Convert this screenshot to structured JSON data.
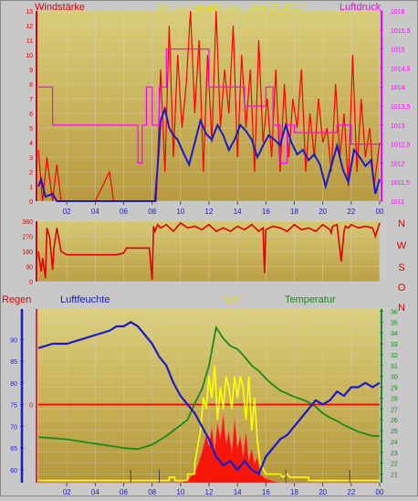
{
  "colors": {
    "background": "#c8c8c8",
    "plot_bg_top": "#d9cd79",
    "plot_bg_bottom": "#b89a40",
    "wind": "#1a1acc",
    "gust": "#ff0000",
    "pressure": "#ff00ff",
    "direction": "#e00000",
    "humidity": "#1a1acc",
    "temperature": "#1a8a1a",
    "uv": "#ffff00",
    "rain": "#ff0000",
    "grid": "#d4d4c4",
    "axis_red": "#e00000",
    "axis_blue": "#1a1acc",
    "axis_green": "#1a8a1a",
    "axis_magenta": "#ff00ff"
  },
  "chart_data": [
    {
      "type": "line",
      "title": "24 hour graph day : Juni 25 2017",
      "left_label": "Windstärke",
      "right_label": "Luftdruck",
      "x_ticks": [
        "02",
        "04",
        "06",
        "08",
        "10",
        "12",
        "14",
        "16",
        "18",
        "20",
        "22",
        "00"
      ],
      "xlim": [
        0,
        24
      ],
      "y_left": {
        "ylim": [
          0,
          13
        ],
        "ticks": [
          "0",
          "1",
          "2",
          "3",
          "4",
          "5",
          "6",
          "7",
          "8",
          "9",
          "10",
          "11",
          "12",
          "13"
        ]
      },
      "y_right": {
        "ylim": [
          1011,
          1016
        ],
        "ticks": [
          "1011",
          "1011,5",
          "1012",
          "1012,5",
          "1013",
          "1013,5",
          "1014",
          "1014,5",
          "1015",
          "1015,5",
          "1016"
        ]
      },
      "series": [
        {
          "axis": "left",
          "x": [
            0,
            0.2,
            0.5,
            1,
            1.3,
            2,
            3,
            4,
            5,
            6,
            7,
            8,
            8.2,
            8.4,
            8.6,
            8.9,
            9.2,
            9.5,
            9.8,
            10.2,
            10.6,
            11,
            11.4,
            11.8,
            12.2,
            12.6,
            13,
            13.4,
            13.8,
            14.2,
            14.6,
            15,
            15.4,
            15.8,
            16.2,
            16.6,
            17,
            17.4,
            17.8,
            18.2,
            18.6,
            19,
            19.4,
            19.8,
            20.2,
            20.6,
            21,
            21.4,
            21.8,
            22.2,
            22.6,
            23,
            23.4,
            23.7,
            24
          ],
          "values": [
            1,
            1.5,
            0.3,
            0.5,
            0,
            0,
            0,
            0,
            0,
            0,
            0,
            0,
            0,
            2.5,
            5.5,
            6.3,
            5,
            4.5,
            4.2,
            3.3,
            2.5,
            4,
            5.5,
            4.6,
            4.2,
            5.2,
            4.5,
            3.5,
            4.2,
            5.2,
            4.8,
            4.2,
            3,
            3.8,
            4.5,
            4.2,
            3.8,
            5.2,
            4,
            3.2,
            3.5,
            2.8,
            3.2,
            2.5,
            1,
            2.4,
            3.8,
            2.2,
            1.3,
            3.5,
            3,
            2.4,
            2.8,
            0.5,
            1.5
          ]
        },
        {
          "axis": "left",
          "x": [
            0,
            0.3,
            0.6,
            1,
            1.3,
            1.6,
            2,
            3,
            4,
            5,
            5.3,
            6,
            7,
            7.5,
            8,
            8.3,
            8.6,
            8.9,
            9.2,
            9.5,
            9.8,
            10.1,
            10.4,
            10.7,
            11,
            11.3,
            11.6,
            11.9,
            12.2,
            12.5,
            12.8,
            13.1,
            13.4,
            13.7,
            14,
            14.3,
            14.6,
            14.9,
            15.2,
            15.5,
            15.8,
            16.1,
            16.4,
            16.7,
            17,
            17.3,
            17.6,
            17.9,
            18.2,
            18.5,
            18.8,
            19.1,
            19.4,
            19.7,
            20,
            20.3,
            20.6,
            20.9,
            21.2,
            21.5,
            21.8,
            22.1,
            22.4,
            22.7,
            23,
            23.3,
            23.6,
            24
          ],
          "values": [
            3.5,
            0,
            3,
            0,
            2.5,
            0,
            0,
            0,
            0,
            2,
            0,
            0,
            0,
            0,
            0,
            0,
            9,
            2,
            12,
            3,
            10,
            5,
            8,
            13,
            6,
            11,
            2,
            10,
            4,
            13,
            5,
            9,
            6,
            12,
            3,
            10,
            5,
            9,
            2,
            11,
            4,
            7,
            3,
            9,
            2,
            8,
            3,
            7,
            5,
            9,
            2,
            6,
            3,
            7,
            4,
            5,
            2,
            8,
            3,
            6,
            1,
            10,
            2,
            7,
            3,
            5,
            1,
            4
          ]
        },
        {
          "axis": "right",
          "x": [
            0,
            1,
            1.001,
            7,
            7.01,
            7.3,
            7.301,
            7.6,
            7.601,
            8,
            8.001,
            8.5,
            8.501,
            9,
            9.001,
            12,
            12.001,
            14.5,
            14.501,
            16,
            16.001,
            16.5,
            16.501,
            17,
            17.001,
            17.5,
            17.501,
            18,
            18.001,
            21,
            21.001,
            22,
            22.001,
            24
          ],
          "values": [
            1014,
            1014,
            1013,
            1013,
            1012,
            1012,
            1013,
            1013,
            1014,
            1014,
            1013,
            1013,
            1014,
            1014,
            1015,
            1015,
            1014,
            1014,
            1013.5,
            1013.5,
            1014,
            1014,
            1013,
            1013,
            1012,
            1012,
            1013,
            1013,
            1012.8,
            1012.8,
            1013,
            1013,
            1012.5,
            1012.5
          ]
        }
      ]
    },
    {
      "type": "line",
      "y_ticks": [
        "0",
        "90",
        "180",
        "270",
        "360"
      ],
      "ylim": [
        0,
        360
      ],
      "direction_labels": [
        "N",
        "W",
        "S",
        "O",
        "N"
      ],
      "series": [
        {
          "x": [
            0,
            0.2,
            0.3,
            0.5,
            0.6,
            0.8,
            1,
            1.1,
            1.3,
            1.6,
            2,
            3,
            4,
            5,
            5.5,
            6,
            6.2,
            6.6,
            7,
            7.4,
            7.6,
            7.8,
            8,
            8.1,
            8.2,
            8.4,
            8.6,
            9,
            9.5,
            10,
            10.5,
            11,
            11.5,
            12,
            12.5,
            13,
            13.5,
            14,
            14.5,
            15,
            15.5,
            15.8,
            15.9,
            16,
            16.5,
            17,
            17.5,
            18,
            18.5,
            19,
            19.5,
            20,
            20.5,
            20.6,
            20.7,
            21,
            21.3,
            21.5,
            21.6,
            21.8,
            22,
            22.5,
            23,
            23.5,
            23.7,
            24
          ],
          "values": [
            180,
            60,
            140,
            20,
            320,
            260,
            70,
            200,
            320,
            180,
            160,
            160,
            160,
            160,
            160,
            170,
            200,
            200,
            200,
            200,
            200,
            200,
            10,
            330,
            300,
            340,
            320,
            340,
            300,
            350,
            320,
            330,
            310,
            340,
            300,
            320,
            300,
            330,
            310,
            340,
            300,
            320,
            50,
            310,
            330,
            320,
            300,
            340,
            310,
            320,
            300,
            340,
            310,
            290,
            330,
            340,
            120,
            300,
            330,
            320,
            340,
            320,
            330,
            320,
            270,
            350
          ]
        }
      ]
    },
    {
      "type": "line",
      "left_label": "Regen",
      "left2_label": "Luftfeuchte",
      "center_label": "UV",
      "right_label": "Temperatur",
      "x_ticks": [
        "02",
        "04",
        "06",
        "08",
        "10",
        "12",
        "14",
        "16",
        "18",
        "20",
        "22",
        "00"
      ],
      "humidity_ticks": [
        "60",
        "65",
        "70",
        "75",
        "80",
        "85",
        "90"
      ],
      "humidity_ylim": [
        57,
        97
      ],
      "rain_tick": "0",
      "temperature_ticks": [
        "21",
        "22",
        "23",
        "24",
        "25",
        "26",
        "27",
        "28",
        "29",
        "30",
        "31",
        "32",
        "33",
        "34",
        "35",
        "36"
      ],
      "temperature_ylim": [
        20.2,
        36.2
      ],
      "rain_level_humidity": 75,
      "series": [
        {
          "name": "Luftfeuchte",
          "x": [
            0,
            1,
            2,
            3,
            4,
            5,
            5.5,
            6,
            6.5,
            7,
            7.5,
            8,
            8.5,
            9,
            9.5,
            10,
            10.5,
            11,
            11.5,
            12,
            12.5,
            13,
            13.5,
            14,
            14.5,
            15,
            15.5,
            16,
            16.5,
            17,
            17.5,
            18,
            18.5,
            19,
            19.5,
            20,
            20.5,
            21,
            21.5,
            22,
            22.5,
            23,
            23.5,
            24
          ],
          "values": [
            88,
            89,
            89,
            90,
            91,
            92,
            93,
            93,
            94,
            93,
            91,
            89,
            86,
            84,
            80,
            77,
            75,
            73,
            70,
            67,
            63,
            61,
            62,
            60,
            62,
            60,
            59,
            63,
            65,
            67,
            68,
            70,
            72,
            74,
            76,
            75,
            76,
            78,
            77,
            79,
            79,
            80,
            79,
            80
          ]
        },
        {
          "name": "Temperatur",
          "x": [
            0,
            1,
            2,
            3,
            4,
            5,
            6,
            7,
            8,
            9,
            10,
            10.5,
            11,
            11.5,
            12,
            12.5,
            13,
            13.5,
            14,
            14.5,
            15,
            15.5,
            16,
            16.5,
            17,
            17.5,
            18,
            18.5,
            19,
            19.5,
            20,
            20.5,
            21,
            21.5,
            22,
            22.5,
            23,
            23.5,
            24
          ],
          "values": [
            24.4,
            24.3,
            24.2,
            24,
            23.8,
            23.6,
            23.4,
            23.3,
            23.7,
            24.5,
            25.5,
            26,
            27.5,
            28.8,
            31,
            34.5,
            33.5,
            32.8,
            32.5,
            31.8,
            31,
            30.5,
            29.8,
            29.2,
            28.7,
            28.4,
            28.1,
            27.9,
            27.6,
            27.2,
            26.6,
            26.2,
            25.9,
            25.5,
            25.2,
            24.9,
            24.7,
            24.5,
            24.5
          ]
        },
        {
          "name": "UV",
          "x": [
            0,
            9.2,
            9.201,
            9.6,
            9.601,
            10.5,
            10.501,
            11,
            11.001,
            11.4,
            11.6,
            11.8,
            12,
            12.2,
            12.4,
            12.6,
            12.8,
            13,
            13.2,
            13.4,
            13.6,
            13.8,
            14,
            14.2,
            14.4,
            14.6,
            14.8,
            15,
            15.2,
            15.4,
            15.6,
            16,
            16.4,
            16.8,
            17,
            17.2,
            17.5,
            17.7,
            18,
            18.3,
            18.6,
            19,
            19.001,
            24
          ],
          "values": [
            20.4,
            20.4,
            20.7,
            20.7,
            20.4,
            20.4,
            21,
            21,
            22,
            25,
            28,
            27,
            30,
            28,
            31,
            26,
            29,
            27,
            30,
            29,
            27,
            30,
            28,
            30,
            29,
            26,
            30,
            25,
            28,
            24,
            22,
            21,
            21,
            21,
            21,
            20.7,
            21,
            20.7,
            20.7,
            20.7,
            20.7,
            20.7,
            20.4,
            20.4
          ]
        },
        {
          "name": "Regen",
          "x": [
            0,
            10,
            10.5,
            11,
            11.2,
            11.5,
            11.8,
            12,
            12.2,
            12.4,
            12.6,
            12.8,
            13,
            13.2,
            13.4,
            13.6,
            13.8,
            14,
            14.2,
            14.4,
            14.6,
            14.8,
            15,
            15.2,
            15.4,
            15.6,
            16,
            16.5,
            17,
            24
          ],
          "values": [
            0,
            0,
            0.3,
            1.2,
            2,
            3.5,
            5.5,
            4.2,
            6.5,
            3.8,
            7,
            5,
            8,
            4.5,
            6,
            3.5,
            7.5,
            4,
            5.5,
            3,
            6,
            2.5,
            4,
            2.2,
            3,
            1,
            0.5,
            0.2,
            0,
            0
          ]
        }
      ],
      "rain_ylim": [
        0,
        20
      ]
    }
  ]
}
